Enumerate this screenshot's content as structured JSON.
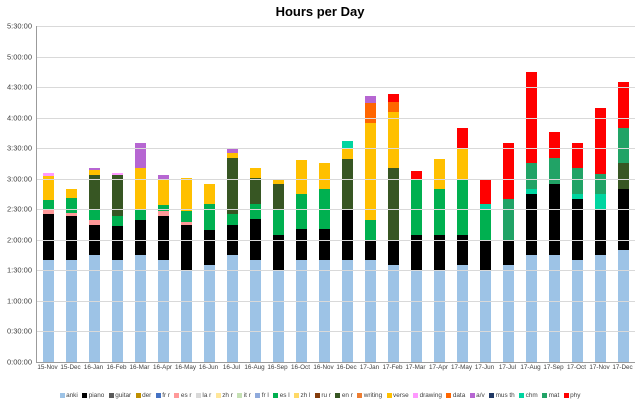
{
  "chart_data": {
    "type": "bar",
    "stacked": true,
    "title": "Hours per Day",
    "xlabel": "",
    "ylabel": "",
    "unit": "hours (h:mm:ss)",
    "ylim_hours": [
      0,
      5.5
    ],
    "grid": true,
    "legend_position": "bottom",
    "y_ticks": [
      "5:30:00",
      "5:00:00",
      "4:30:00",
      "4:00:00",
      "3:30:00",
      "3:00:00",
      "2:30:00",
      "2:00:00",
      "1:30:00",
      "1:00:00",
      "0:30:00",
      "0:00:00"
    ],
    "categories": [
      "15-Nov",
      "15-Dec",
      "16-Jan",
      "16-Feb",
      "16-Mar",
      "16-Apr",
      "16-May",
      "16-Jun",
      "16-Jul",
      "16-Aug",
      "16-Sep",
      "16-Oct",
      "16-Nov",
      "16-Dec",
      "17-Jan",
      "17-Feb",
      "17-Mar",
      "17-Apr",
      "17-May",
      "17-Jun",
      "17-Jul",
      "17-Aug",
      "17-Sep",
      "17-Oct",
      "17-Nov",
      "17-Dec"
    ],
    "series": [
      {
        "name": "anki",
        "color": "#9dc3e6",
        "values": [
          1.67,
          1.67,
          1.75,
          1.67,
          1.75,
          1.67,
          1.5,
          1.58,
          1.75,
          1.67,
          1.5,
          1.67,
          1.67,
          1.67,
          1.67,
          1.58,
          1.5,
          1.5,
          1.58,
          1.5,
          1.58,
          1.75,
          1.75,
          1.67,
          1.75,
          1.83
        ]
      },
      {
        "name": "piano",
        "color": "#000000",
        "values": [
          0.75,
          0.72,
          0.5,
          0.55,
          0.58,
          0.72,
          0.75,
          0.58,
          0.5,
          0.67,
          0.58,
          0.5,
          0.5,
          0.83,
          0.33,
          0.42,
          0.58,
          0.58,
          0.5,
          0.5,
          0.42,
          1.0,
          1.17,
          1.0,
          0.75,
          1.0
        ]
      },
      {
        "name": "guitar",
        "color": "#595959",
        "values": [
          0,
          0,
          0,
          0,
          0,
          0,
          0,
          0,
          0,
          0,
          0,
          0,
          0,
          0,
          0,
          0,
          0,
          0,
          0,
          0,
          0,
          0,
          0,
          0,
          0,
          0
        ]
      },
      {
        "name": "der",
        "color": "#bf8f00",
        "values": [
          0,
          0,
          0,
          0,
          0,
          0,
          0,
          0,
          0,
          0,
          0,
          0,
          0,
          0,
          0,
          0,
          0,
          0,
          0,
          0,
          0,
          0,
          0,
          0,
          0,
          0
        ]
      },
      {
        "name": "fr r",
        "color": "#4472c4",
        "values": [
          0,
          0,
          0,
          0,
          0,
          0,
          0,
          0,
          0,
          0,
          0,
          0,
          0,
          0,
          0,
          0,
          0,
          0,
          0,
          0,
          0,
          0,
          0,
          0,
          0,
          0
        ]
      },
      {
        "name": "es r",
        "color": "#ff9999",
        "values": [
          0.08,
          0.05,
          0.07,
          0,
          0,
          0.08,
          0.05,
          0,
          0,
          0,
          0,
          0,
          0,
          0,
          0,
          0,
          0,
          0,
          0,
          0,
          0,
          0,
          0,
          0,
          0,
          0
        ]
      },
      {
        "name": "la r",
        "color": "#d9d9d9",
        "values": [
          0,
          0,
          0,
          0,
          0,
          0,
          0,
          0,
          0,
          0,
          0,
          0,
          0,
          0,
          0,
          0,
          0,
          0,
          0,
          0,
          0,
          0,
          0,
          0,
          0,
          0
        ]
      },
      {
        "name": "zh r",
        "color": "#ffe699",
        "values": [
          0,
          0,
          0,
          0,
          0,
          0,
          0,
          0,
          0,
          0,
          0,
          0,
          0,
          0,
          0,
          0,
          0,
          0,
          0,
          0,
          0,
          0,
          0,
          0,
          0,
          0
        ]
      },
      {
        "name": "it r",
        "color": "#c5e0b4",
        "values": [
          0,
          0,
          0,
          0,
          0,
          0,
          0,
          0,
          0,
          0,
          0,
          0,
          0,
          0,
          0,
          0,
          0,
          0,
          0,
          0,
          0,
          0,
          0,
          0,
          0,
          0
        ]
      },
      {
        "name": "fr l",
        "color": "#8faadc",
        "values": [
          0,
          0,
          0,
          0,
          0,
          0,
          0,
          0,
          0,
          0,
          0,
          0,
          0,
          0,
          0,
          0,
          0,
          0,
          0,
          0,
          0,
          0,
          0,
          0,
          0,
          0
        ]
      },
      {
        "name": "es l",
        "color": "#00b050",
        "values": [
          0.15,
          0.25,
          0.17,
          0.17,
          0.17,
          0.1,
          0.17,
          0.42,
          0.17,
          0.25,
          0.42,
          0.58,
          0.67,
          0,
          0.33,
          0,
          0.92,
          0.75,
          0.92,
          0.5,
          0,
          0,
          0,
          0,
          0,
          0
        ]
      },
      {
        "name": "zh l",
        "color": "#ffd966",
        "values": [
          0,
          0,
          0,
          0,
          0,
          0,
          0,
          0,
          0,
          0,
          0,
          0,
          0,
          0,
          0,
          0,
          0,
          0,
          0,
          0,
          0,
          0,
          0,
          0,
          0,
          0
        ]
      },
      {
        "name": "ru r",
        "color": "#843c0c",
        "values": [
          0,
          0,
          0,
          0,
          0,
          0,
          0,
          0,
          0,
          0,
          0,
          0,
          0,
          0,
          0,
          0,
          0,
          0,
          0,
          0,
          0,
          0,
          0,
          0,
          0,
          0
        ]
      },
      {
        "name": "en r",
        "color": "#375623",
        "values": [
          0,
          0,
          0.58,
          0.67,
          0,
          0,
          0,
          0,
          0.92,
          0.42,
          0.42,
          0,
          0,
          0.83,
          0,
          1.17,
          0,
          0,
          0,
          0,
          0,
          0,
          0,
          0,
          0,
          0.42
        ]
      },
      {
        "name": "writing",
        "color": "#ed7d31",
        "values": [
          0,
          0,
          0,
          0,
          0,
          0,
          0,
          0,
          0,
          0,
          0,
          0,
          0,
          0,
          0,
          0,
          0,
          0,
          0,
          0,
          0,
          0,
          0,
          0,
          0,
          0
        ]
      },
      {
        "name": "verse",
        "color": "#ffc000",
        "values": [
          0.4,
          0.15,
          0.08,
          0,
          0.67,
          0.42,
          0.55,
          0.33,
          0.08,
          0.17,
          0.08,
          0.55,
          0.42,
          0.17,
          1.58,
          0.92,
          0,
          0.5,
          0.5,
          0,
          0,
          0,
          0,
          0,
          0,
          0
        ]
      },
      {
        "name": "drawing",
        "color": "#ff99ff",
        "values": [
          0.05,
          0,
          0,
          0.03,
          0,
          0,
          0,
          0,
          0,
          0,
          0,
          0,
          0,
          0,
          0,
          0,
          0,
          0,
          0,
          0,
          0,
          0,
          0,
          0,
          0,
          0
        ]
      },
      {
        "name": "data",
        "color": "#ff6600",
        "values": [
          0,
          0,
          0,
          0,
          0,
          0,
          0,
          0,
          0,
          0,
          0,
          0,
          0,
          0,
          0.33,
          0.17,
          0,
          0,
          0,
          0,
          0,
          0,
          0,
          0,
          0,
          0
        ]
      },
      {
        "name": "a/v",
        "color": "#b666d2",
        "values": [
          0,
          0,
          0.03,
          0,
          0.42,
          0.08,
          0,
          0,
          0.08,
          0,
          0,
          0,
          0,
          0,
          0.12,
          0,
          0,
          0,
          0,
          0,
          0,
          0,
          0,
          0,
          0,
          0
        ]
      },
      {
        "name": "mus th",
        "color": "#203864",
        "values": [
          0,
          0,
          0,
          0,
          0,
          0,
          0,
          0,
          0,
          0,
          0,
          0,
          0,
          0,
          0,
          0,
          0,
          0,
          0,
          0,
          0,
          0,
          0,
          0,
          0,
          0
        ]
      },
      {
        "name": "chm",
        "color": "#00d5a0",
        "values": [
          0,
          0,
          0,
          0,
          0,
          0,
          0,
          0,
          0,
          0,
          0,
          0,
          0,
          0.12,
          0,
          0,
          0,
          0,
          0,
          0.08,
          0,
          0.08,
          0,
          0.08,
          0.25,
          0
        ]
      },
      {
        "name": "mat",
        "color": "#21a366",
        "values": [
          0,
          0,
          0,
          0,
          0,
          0,
          0,
          0,
          0,
          0,
          0,
          0,
          0,
          0,
          0,
          0,
          0,
          0,
          0,
          0,
          0.67,
          0.42,
          0.42,
          0.42,
          0.33,
          0.58
        ]
      },
      {
        "name": "phy",
        "color": "#ff0000",
        "values": [
          0,
          0,
          0,
          0,
          0,
          0,
          0,
          0,
          0,
          0,
          0,
          0,
          0,
          0,
          0,
          0.12,
          0.12,
          0,
          0.33,
          0.42,
          0.92,
          1.5,
          0.42,
          0.42,
          1.08,
          0.75
        ]
      }
    ]
  }
}
